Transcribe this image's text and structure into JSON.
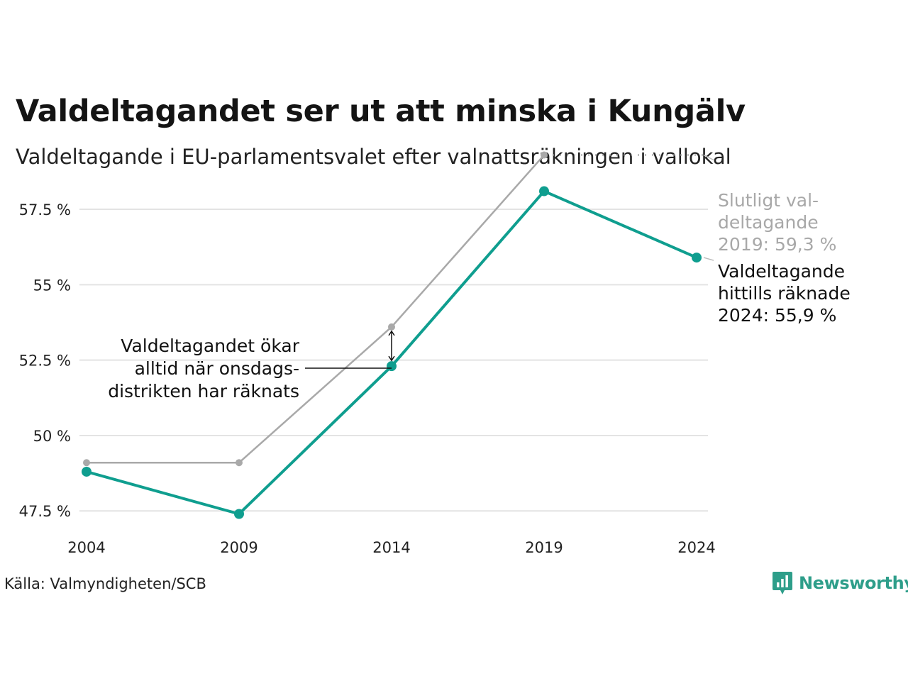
{
  "header": {
    "title": "Valdeltagandet ser ut att minska i Kungälv",
    "subtitle": "Valdeltagande i EU-parlamentsvalet efter valnattsräkningen i vallokal"
  },
  "colors": {
    "current": "#0f9e8f",
    "final": "#a9a9a9",
    "grid": "#e3e3e3",
    "text": "#111111",
    "brand": "#2e9e8a"
  },
  "chart_data": {
    "type": "line",
    "title": "Valdeltagandet ser ut att minska i Kungälv",
    "subtitle": "Valdeltagande i EU-parlamentsvalet efter valnattsräkningen i vallokal",
    "x": [
      2004,
      2009,
      2014,
      2019,
      2024
    ],
    "x_tick_labels": [
      "2004",
      "2009",
      "2014",
      "2019",
      "2024"
    ],
    "y_ticks": [
      47.5,
      50,
      52.5,
      55,
      57.5
    ],
    "y_tick_labels": [
      "47.5 %",
      "50 %",
      "52.5 %",
      "55 %",
      "57.5 %"
    ],
    "ylim": [
      47.2,
      59.5
    ],
    "grid": true,
    "series": [
      {
        "key": "final",
        "x": [
          2004,
          2009,
          2014,
          2019
        ],
        "values": [
          49.1,
          49.1,
          53.6,
          59.3
        ]
      },
      {
        "key": "current",
        "x": [
          2004,
          2009,
          2014,
          2019,
          2024
        ],
        "values": [
          48.8,
          47.4,
          52.3,
          58.1,
          55.9
        ]
      }
    ],
    "annotations": [
      {
        "key": "final_label",
        "lines": [
          "Slutligt val-",
          "deltagande",
          "2019: 59,3 %"
        ]
      },
      {
        "key": "current_label",
        "lines": [
          "Valdeltagande",
          "hittills räknade",
          "2024: 55,9 %"
        ]
      },
      {
        "key": "note",
        "lines": [
          "Valdeltagandet ökar",
          "alltid när onsdags-",
          "distrikten har räknats"
        ]
      }
    ]
  },
  "footer": {
    "source": "Källa: Valmyndigheten/SCB",
    "brand": "Newsworthy",
    "brand_icon": "newsworthy-logo-icon"
  }
}
